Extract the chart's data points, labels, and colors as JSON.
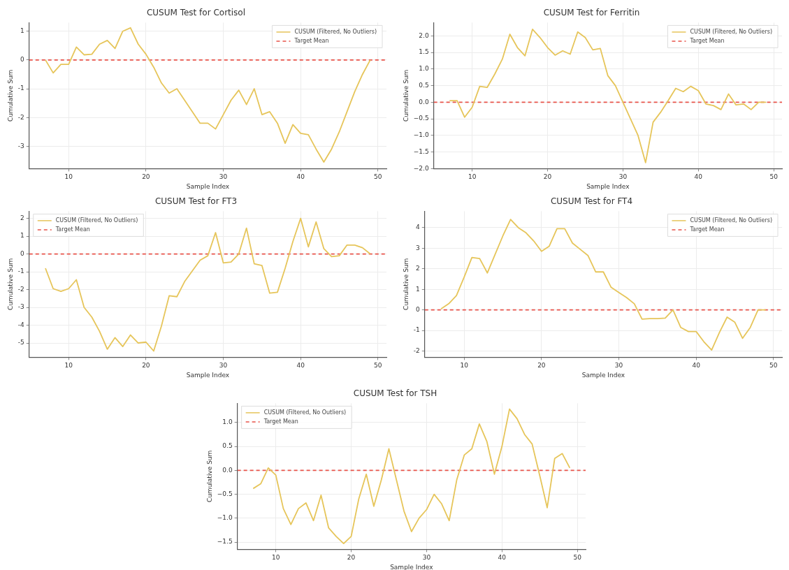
{
  "chart_data": [
    {
      "type": "line",
      "title": "CUSUM Test for Cortisol",
      "xlabel": "Sample Index",
      "ylabel": "Cumulative Sum",
      "x": [
        7,
        8,
        9,
        10,
        11,
        12,
        13,
        14,
        15,
        16,
        17,
        18,
        19,
        20,
        21,
        22,
        23,
        24,
        25,
        26,
        27,
        28,
        29,
        30,
        31,
        32,
        33,
        34,
        35,
        36,
        37,
        38,
        39,
        40,
        41,
        42,
        43,
        44,
        45,
        46,
        47,
        48,
        49
      ],
      "series": [
        {
          "name": "CUSUM (Filtered, No Outliers)",
          "color": "#e6c55a",
          "values": [
            0,
            -0.45,
            -0.15,
            -0.15,
            0.45,
            0.18,
            0.2,
            0.55,
            0.68,
            0.4,
            1.0,
            1.12,
            0.55,
            0.2,
            -0.25,
            -0.8,
            -1.15,
            -1.0,
            -1.4,
            -1.8,
            -2.2,
            -2.2,
            -2.4,
            -1.9,
            -1.4,
            -1.05,
            -1.55,
            -1.0,
            -1.9,
            -1.8,
            -2.2,
            -2.9,
            -2.25,
            -2.55,
            -2.6,
            -3.1,
            -3.55,
            -3.1,
            -2.5,
            -1.8,
            -1.1,
            -0.5,
            0
          ]
        }
      ],
      "ref_lines": [
        {
          "axis": "y",
          "value": 0,
          "label": "Target Mean",
          "color": "#e8534a",
          "line_style": "dashed"
        }
      ],
      "xlim": [
        4.9,
        51.1
      ],
      "xticks": [
        10,
        20,
        30,
        40,
        50
      ],
      "ylim": [
        -3.78,
        1.3
      ],
      "yticks": [
        -3,
        -2,
        -1,
        0,
        1
      ],
      "grid": true,
      "legend": "top right"
    },
    {
      "type": "line",
      "title": "CUSUM Test for Ferritin",
      "xlabel": "Sample Index",
      "ylabel": "Cumulative Sum",
      "x": [
        7,
        8,
        9,
        10,
        11,
        12,
        13,
        14,
        15,
        16,
        17,
        18,
        19,
        20,
        21,
        22,
        23,
        24,
        25,
        26,
        27,
        28,
        29,
        30,
        31,
        32,
        33,
        34,
        35,
        36,
        37,
        38,
        39,
        40,
        41,
        42,
        43,
        44,
        45,
        46,
        47,
        48,
        49
      ],
      "series": [
        {
          "name": "CUSUM (Filtered, No Outliers)",
          "color": "#e6c55a",
          "values": [
            0.05,
            0.05,
            -0.45,
            -0.15,
            0.48,
            0.45,
            0.85,
            1.3,
            2.05,
            1.65,
            1.4,
            2.2,
            1.95,
            1.65,
            1.42,
            1.55,
            1.45,
            2.12,
            1.95,
            1.58,
            1.62,
            0.8,
            0.5,
            0,
            -0.5,
            -1.0,
            -1.82,
            -0.6,
            -0.3,
            0.05,
            0.42,
            0.32,
            0.48,
            0.35,
            -0.05,
            -0.1,
            -0.22,
            0.25,
            -0.08,
            -0.05,
            -0.22,
            0,
            0
          ]
        }
      ],
      "ref_lines": [
        {
          "axis": "y",
          "value": 0,
          "label": "Target Mean",
          "color": "#e8534a",
          "line_style": "dashed"
        }
      ],
      "xlim": [
        4.9,
        51.1
      ],
      "xticks": [
        10,
        20,
        30,
        40,
        50
      ],
      "ylim": [
        -2.0,
        2.4
      ],
      "yticks": [
        {
          "value": -2,
          "label": "−2.0"
        },
        {
          "value": -1.5,
          "label": "−1.5"
        },
        {
          "value": -1,
          "label": "−1.0"
        },
        {
          "value": -0.5,
          "label": "−0.5"
        },
        {
          "value": 0,
          "label": "0.0"
        },
        {
          "value": 0.5,
          "label": "0.5"
        },
        {
          "value": 1,
          "label": "1.0"
        },
        {
          "value": 1.5,
          "label": "1.5"
        },
        {
          "value": 2,
          "label": "2.0"
        }
      ],
      "grid": true,
      "legend": "top right"
    },
    {
      "type": "line",
      "title": "CUSUM Test for FT3",
      "xlabel": "Sample Index",
      "ylabel": "Cumulative Sum",
      "x": [
        7,
        8,
        9,
        10,
        11,
        12,
        13,
        14,
        15,
        16,
        17,
        18,
        19,
        20,
        21,
        22,
        23,
        24,
        25,
        26,
        27,
        28,
        29,
        30,
        31,
        32,
        33,
        34,
        35,
        36,
        37,
        38,
        39,
        40,
        41,
        42,
        43,
        44,
        45,
        46,
        47,
        48,
        49
      ],
      "series": [
        {
          "name": "CUSUM (Filtered, No Outliers)",
          "color": "#e6c55a",
          "values": [
            -0.8,
            -1.95,
            -2.1,
            -1.95,
            -1.45,
            -3.0,
            -3.55,
            -4.35,
            -5.35,
            -4.7,
            -5.2,
            -4.55,
            -5.0,
            -4.95,
            -5.45,
            -4.05,
            -2.35,
            -2.4,
            -1.55,
            -0.95,
            -0.35,
            -0.1,
            1.2,
            -0.5,
            -0.45,
            0,
            1.45,
            -0.55,
            -0.65,
            -2.2,
            -2.15,
            -0.8,
            0.7,
            2.0,
            0.4,
            1.8,
            0.3,
            -0.15,
            -0.1,
            0.5,
            0.5,
            0.35,
            0
          ]
        }
      ],
      "ref_lines": [
        {
          "axis": "y",
          "value": 0,
          "label": "Target Mean",
          "color": "#e8534a",
          "line_style": "dashed"
        }
      ],
      "xlim": [
        4.9,
        51.1
      ],
      "xticks": [
        10,
        20,
        30,
        40,
        50
      ],
      "ylim": [
        -5.8,
        2.4
      ],
      "yticks": [
        -5,
        -4,
        -3,
        -2,
        -1,
        0,
        1,
        2
      ],
      "grid": true,
      "legend": "top left"
    },
    {
      "type": "line",
      "title": "CUSUM Test for FT4",
      "xlabel": "Sample Index",
      "ylabel": "Cumulative Sum",
      "x": [
        7,
        8,
        9,
        10,
        11,
        12,
        13,
        14,
        15,
        16,
        17,
        18,
        19,
        20,
        21,
        22,
        23,
        24,
        25,
        26,
        27,
        28,
        29,
        30,
        31,
        32,
        33,
        34,
        35,
        36,
        37,
        38,
        39,
        40,
        41,
        42,
        43,
        44,
        45,
        46,
        47,
        48,
        49
      ],
      "series": [
        {
          "name": "CUSUM (Filtered, No Outliers)",
          "color": "#e6c55a",
          "values": [
            0.05,
            0.3,
            0.7,
            1.6,
            2.55,
            2.5,
            1.8,
            2.7,
            3.6,
            4.4,
            4.0,
            3.75,
            3.35,
            2.85,
            3.1,
            3.95,
            3.95,
            3.25,
            2.95,
            2.65,
            1.85,
            1.85,
            1.1,
            0.85,
            0.6,
            0.3,
            -0.45,
            -0.42,
            -0.42,
            -0.4,
            0,
            -0.85,
            -1.05,
            -1.05,
            -1.55,
            -1.95,
            -1.1,
            -0.35,
            -0.6,
            -1.38,
            -0.85,
            0,
            0
          ]
        }
      ],
      "ref_lines": [
        {
          "axis": "y",
          "value": 0,
          "label": "Target Mean",
          "color": "#e8534a",
          "line_style": "dashed"
        }
      ],
      "xlim": [
        4.9,
        51.1
      ],
      "xticks": [
        10,
        20,
        30,
        40,
        50
      ],
      "ylim": [
        -2.3,
        4.8
      ],
      "yticks": [
        -2,
        -1,
        0,
        1,
        2,
        3,
        4
      ],
      "grid": true,
      "legend": "top right"
    },
    {
      "type": "line",
      "title": "CUSUM Test for TSH",
      "xlabel": "Sample Index",
      "ylabel": "Cumulative Sum",
      "x": [
        7,
        8,
        9,
        10,
        11,
        12,
        13,
        14,
        15,
        16,
        17,
        18,
        19,
        20,
        21,
        22,
        23,
        24,
        25,
        26,
        27,
        28,
        29,
        30,
        31,
        32,
        33,
        34,
        35,
        36,
        37,
        38,
        39,
        40,
        41,
        42,
        43,
        44,
        45,
        46,
        47,
        48,
        49
      ],
      "series": [
        {
          "name": "CUSUM (Filtered, No Outliers)",
          "color": "#e6c55a",
          "values": [
            -0.38,
            -0.28,
            0.05,
            -0.1,
            -0.8,
            -1.13,
            -0.8,
            -0.68,
            -1.05,
            -0.52,
            -1.2,
            -1.38,
            -1.53,
            -1.38,
            -0.6,
            -0.08,
            -0.75,
            -0.2,
            0.45,
            -0.2,
            -0.85,
            -1.28,
            -1.0,
            -0.82,
            -0.5,
            -0.7,
            -1.05,
            -0.2,
            0.32,
            0.45,
            0.97,
            0.6,
            -0.08,
            0.5,
            1.28,
            1.08,
            0.75,
            0.55,
            -0.1,
            -0.78,
            0.25,
            0.35,
            0.05
          ]
        }
      ],
      "ref_lines": [
        {
          "axis": "y",
          "value": 0,
          "label": "Target Mean",
          "color": "#e8534a",
          "line_style": "dashed"
        }
      ],
      "xlim": [
        4.9,
        51.1
      ],
      "xticks": [
        10,
        20,
        30,
        40,
        50
      ],
      "ylim": [
        -1.65,
        1.4
      ],
      "yticks": [
        {
          "value": -1.5,
          "label": "−1.5"
        },
        {
          "value": -1,
          "label": "−1.0"
        },
        {
          "value": -0.5,
          "label": "−0.5"
        },
        {
          "value": 0,
          "label": "0.0"
        },
        {
          "value": 0.5,
          "label": "0.5"
        },
        {
          "value": 1,
          "label": "1.0"
        }
      ],
      "grid": true,
      "legend": "top left"
    }
  ]
}
